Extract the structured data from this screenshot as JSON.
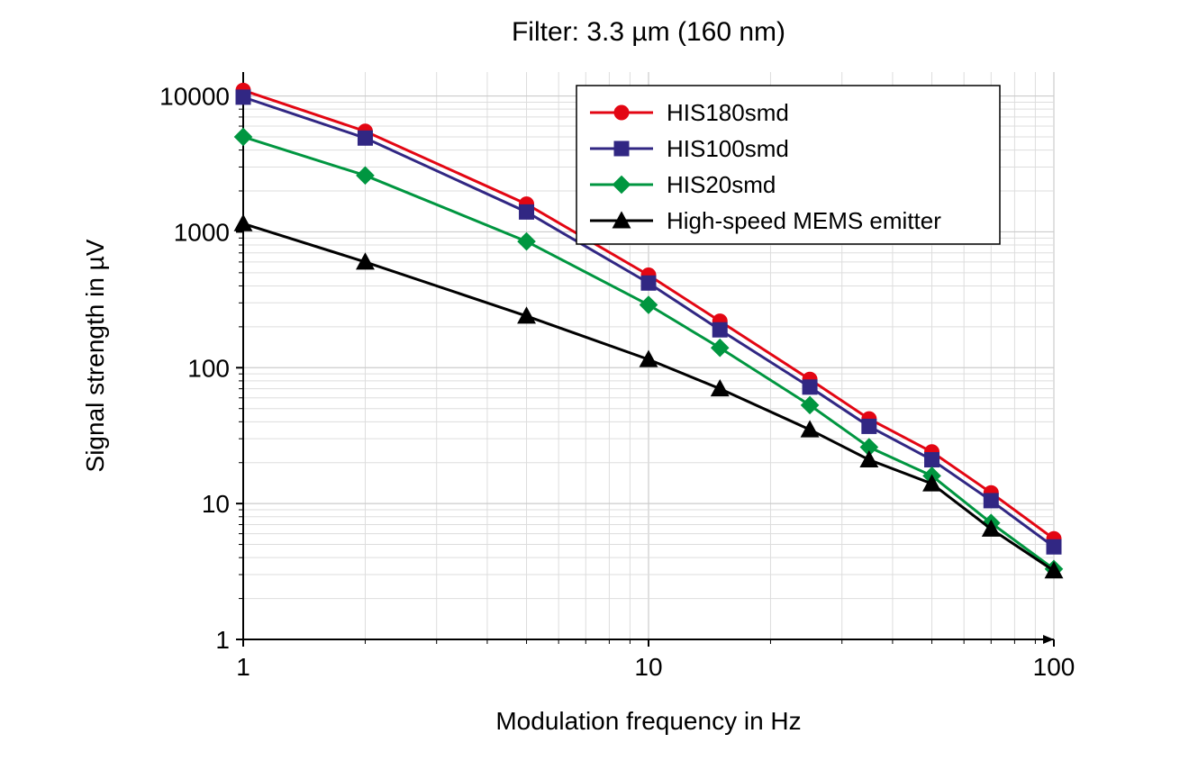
{
  "chart": {
    "type": "line-log-log",
    "title": "Filter: 3.3 µm (160 nm)",
    "xlabel": "Modulation frequency in Hz",
    "ylabel": "Signal strength in µV",
    "title_fontsize": 30,
    "label_fontsize": 28,
    "tick_fontsize": 28,
    "legend_fontsize": 26,
    "background_color": "#ffffff",
    "plot_bg_color": "#ffffff",
    "grid_major_color": "#cccccc",
    "grid_minor_color": "#dddddd",
    "axis_color": "#000000",
    "xlim": [
      1,
      100
    ],
    "ylim": [
      1,
      15000
    ],
    "xticks": [
      1,
      10,
      100
    ],
    "xtick_labels": [
      "1",
      "10",
      "100"
    ],
    "yticks": [
      1,
      10,
      100,
      1000,
      10000
    ],
    "ytick_labels": [
      "1",
      "10",
      "100",
      "1000",
      "10000"
    ],
    "line_width": 3,
    "marker_size": 8,
    "legend_position": "top-right",
    "legend_border_color": "#000000",
    "legend_bg_color": "#ffffff",
    "series": [
      {
        "name": "HIS180smd",
        "color": "#e30613",
        "marker": "circle",
        "x": [
          1,
          2,
          5,
          10,
          15,
          25,
          35,
          50,
          70,
          100
        ],
        "y": [
          11000,
          5500,
          1600,
          480,
          220,
          82,
          42,
          24,
          12,
          5.5
        ]
      },
      {
        "name": "HIS100smd",
        "color": "#312783",
        "marker": "square",
        "x": [
          1,
          2,
          5,
          10,
          15,
          25,
          35,
          50,
          70,
          100
        ],
        "y": [
          9800,
          4900,
          1400,
          420,
          190,
          72,
          37,
          21,
          10.5,
          4.8
        ]
      },
      {
        "name": "HIS20smd",
        "color": "#009640",
        "marker": "diamond",
        "x": [
          1,
          2,
          5,
          10,
          15,
          25,
          35,
          50,
          70,
          100
        ],
        "y": [
          5000,
          2600,
          850,
          290,
          140,
          53,
          26,
          16,
          7.2,
          3.3
        ]
      },
      {
        "name": "High-speed MEMS emitter",
        "color": "#000000",
        "marker": "triangle",
        "x": [
          1,
          2,
          5,
          10,
          15,
          25,
          35,
          50,
          70,
          100
        ],
        "y": [
          1150,
          600,
          240,
          115,
          70,
          35,
          21,
          14,
          6.5,
          3.2
        ]
      }
    ]
  }
}
